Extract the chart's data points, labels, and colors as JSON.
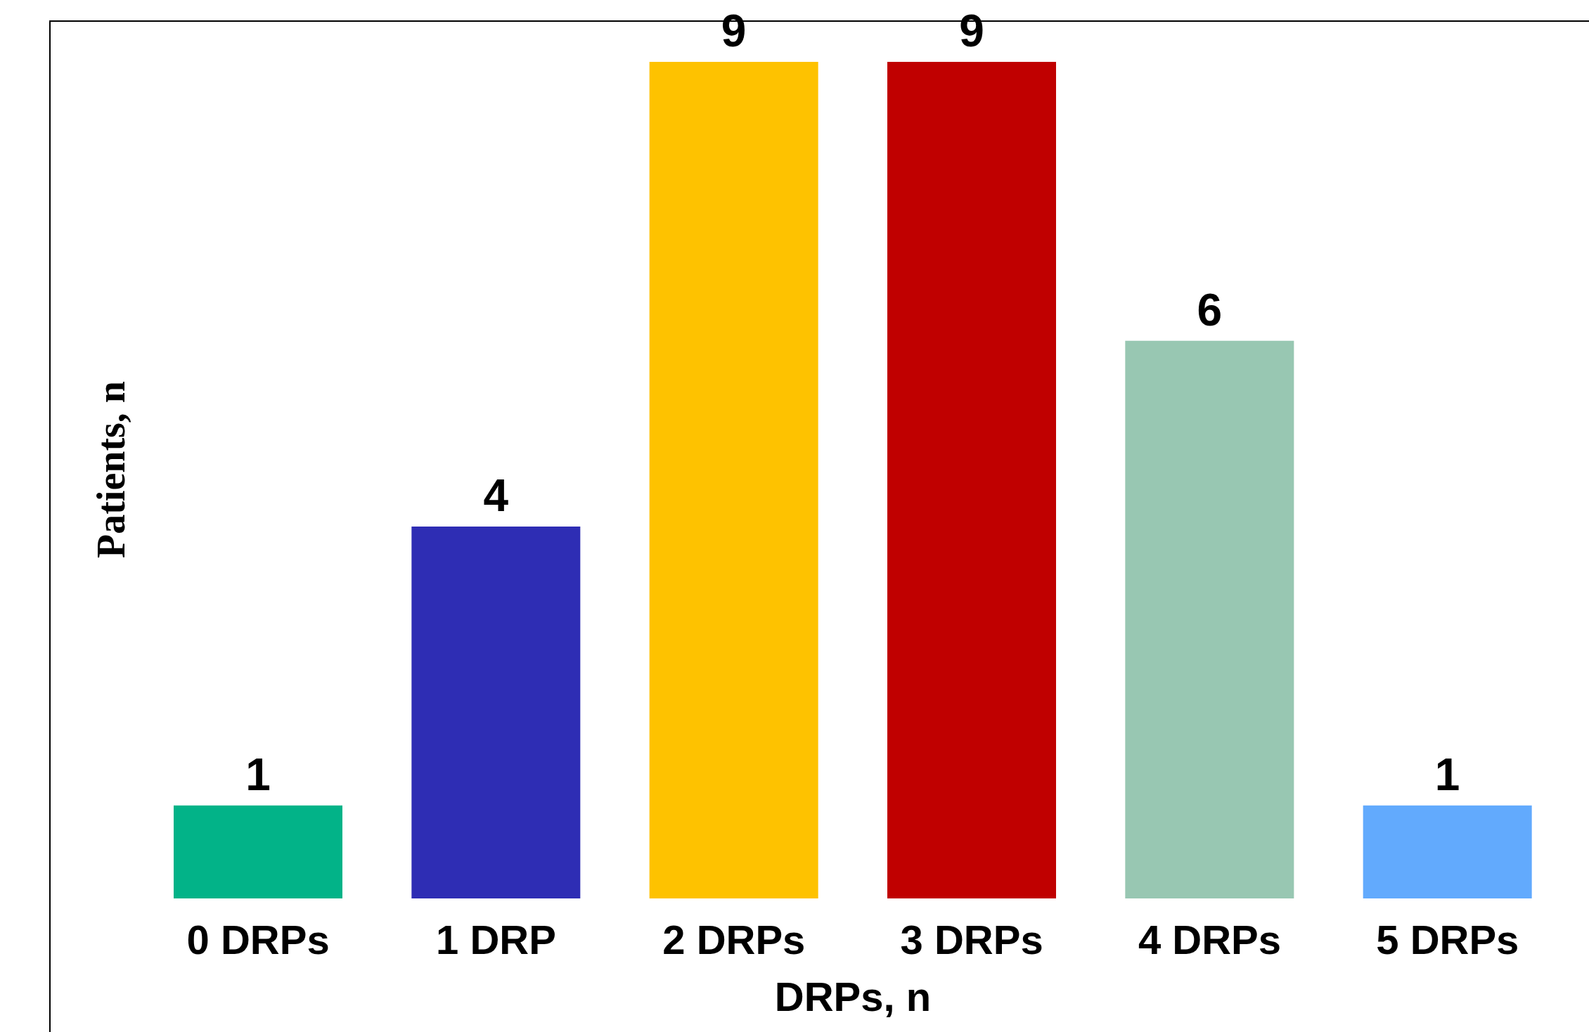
{
  "chart_data": {
    "type": "bar",
    "xlabel": "DRPs, n",
    "ylabel": "Patients, n",
    "categories": [
      "0 DRPs",
      "1 DRP",
      "2 DRPs",
      "3 DRPs",
      "4 DRPs",
      "5 DRPs"
    ],
    "values": [
      1,
      4,
      9,
      9,
      6,
      1
    ],
    "colors": [
      "#02b388",
      "#2e2db4",
      "#fec200",
      "#c00000",
      "#98c7b2",
      "#62aafd"
    ],
    "data_labels": true
  }
}
